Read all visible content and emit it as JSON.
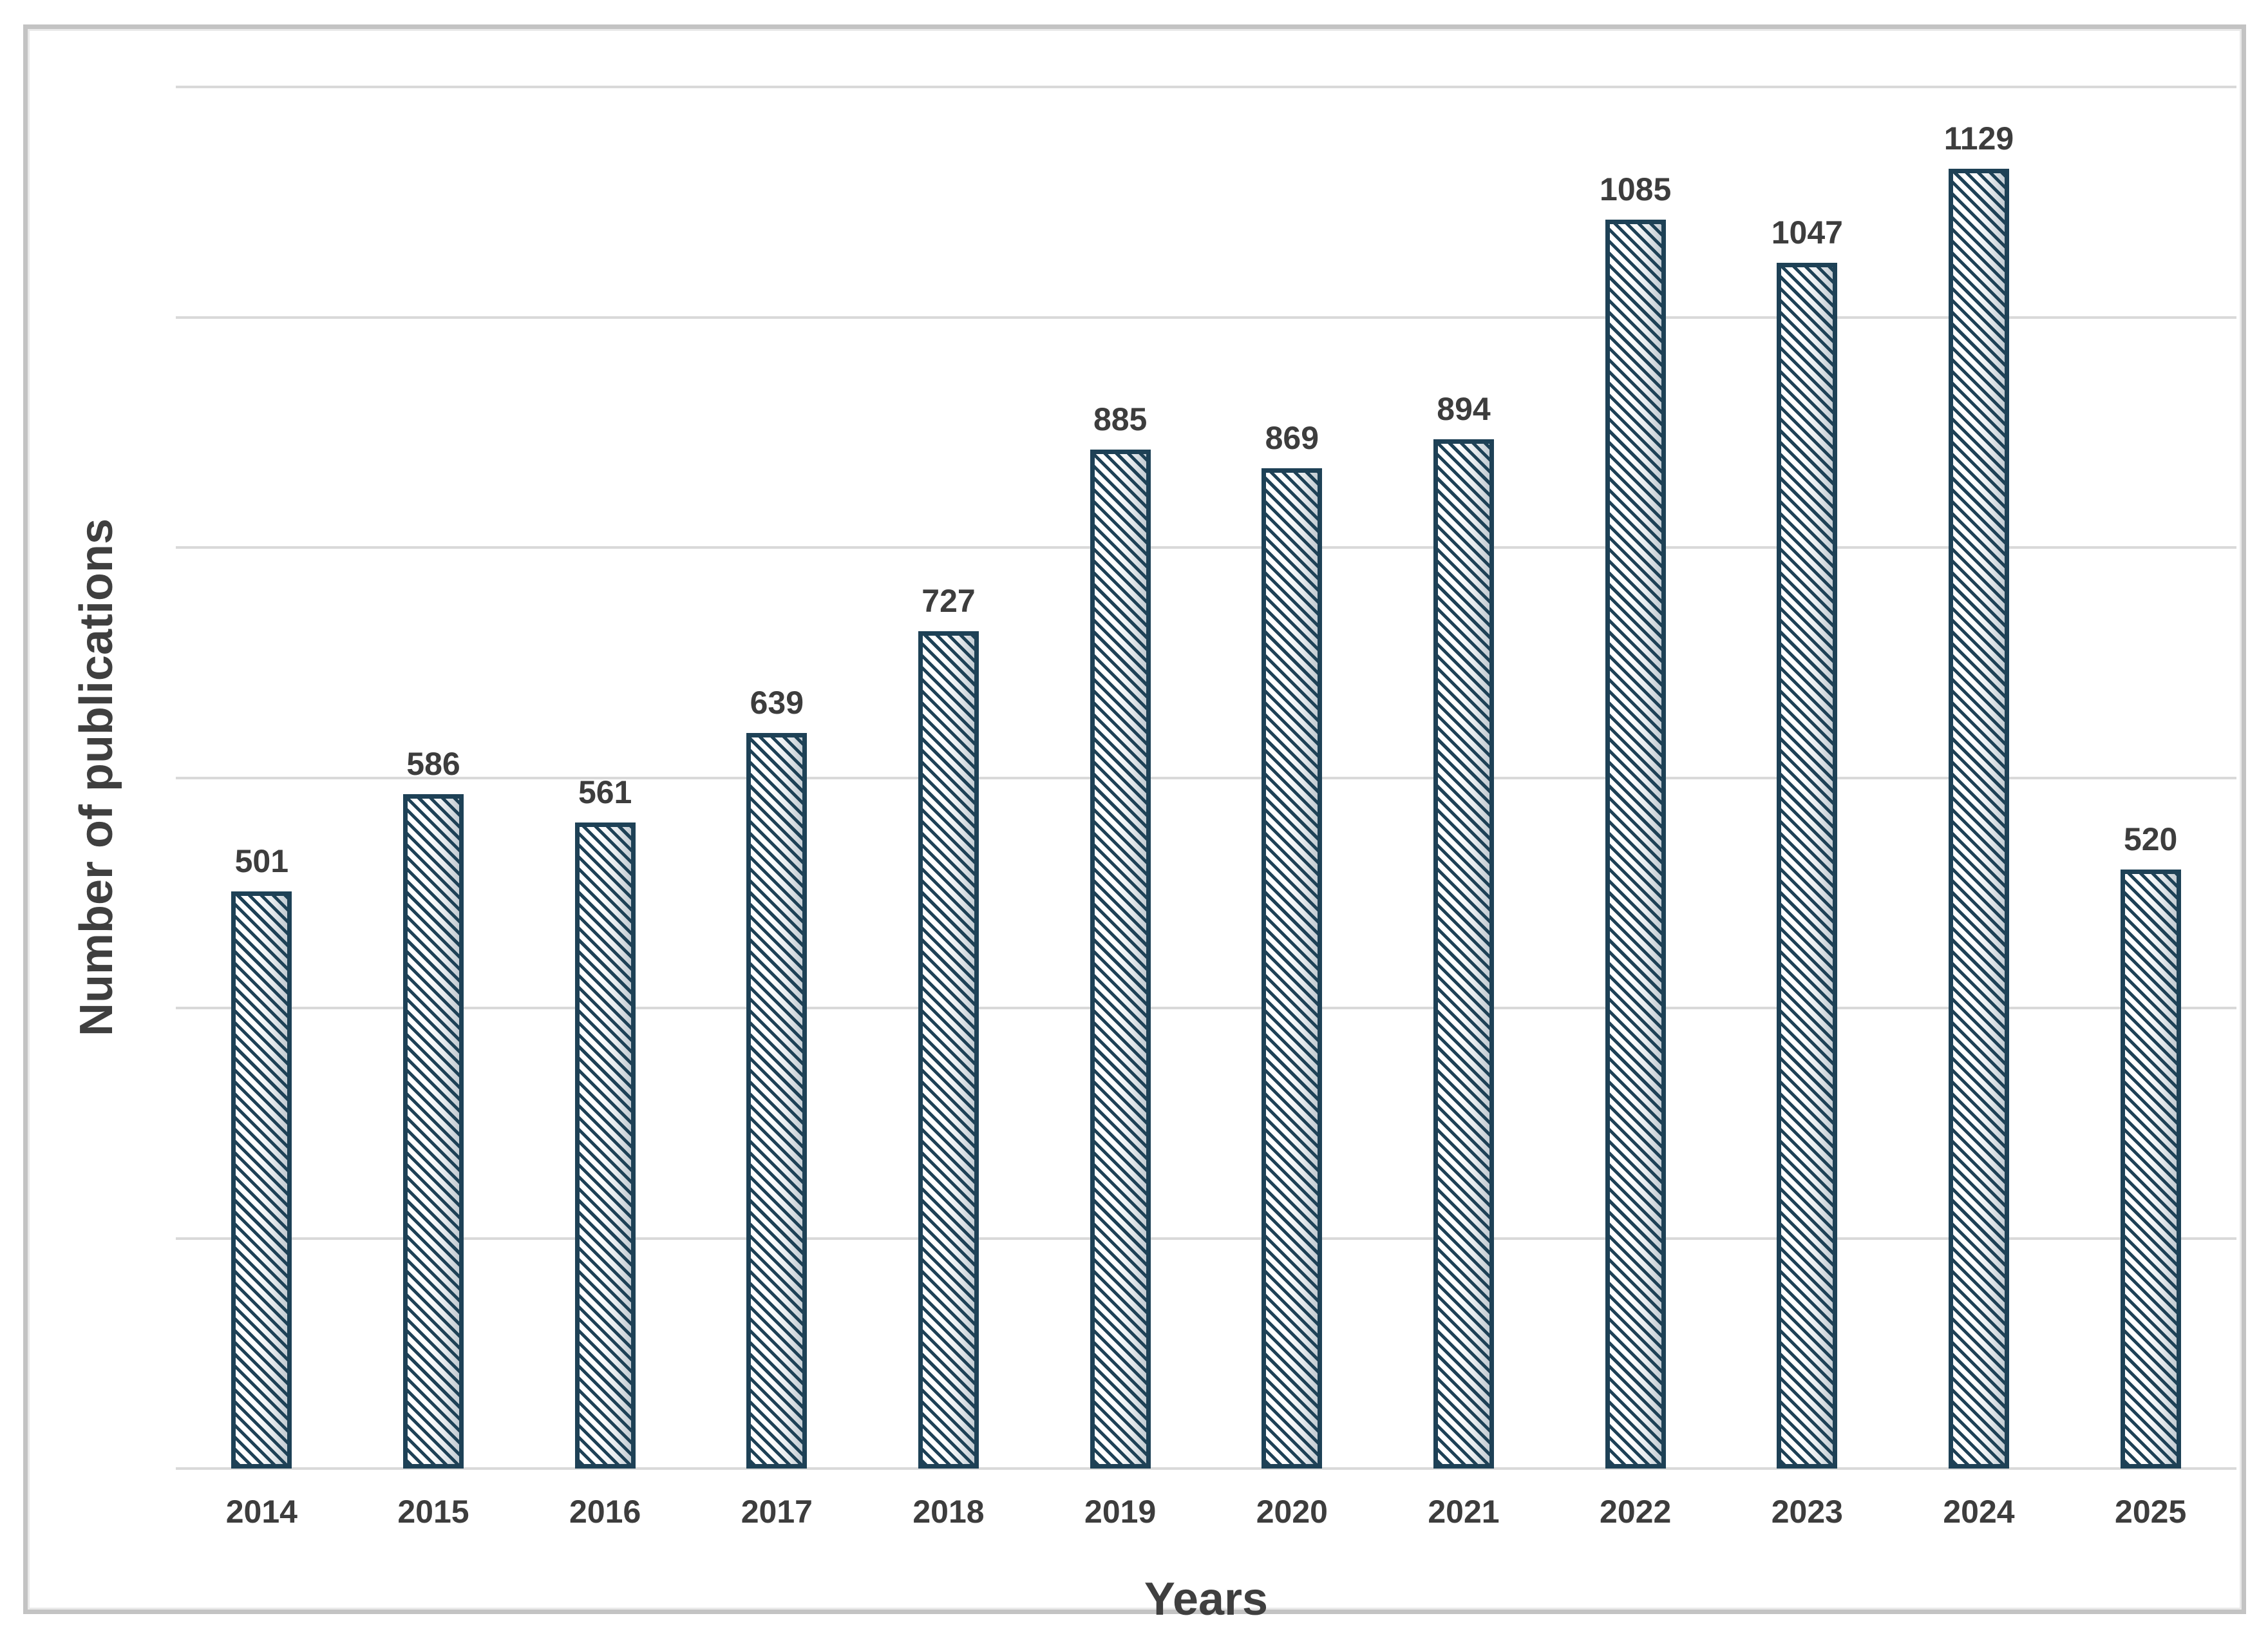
{
  "chart_data": {
    "type": "bar",
    "title": "",
    "categories": [
      "2014",
      "2015",
      "2016",
      "2017",
      "2018",
      "2019",
      "2020",
      "2021",
      "2022",
      "2023",
      "2024",
      "2025"
    ],
    "values": [
      501,
      586,
      561,
      639,
      727,
      885,
      869,
      894,
      1085,
      1047,
      1129,
      520
    ],
    "xlabel": "Years",
    "ylabel": "Number of publications",
    "ylim": [
      0,
      1200
    ],
    "gridline_step": 200,
    "grid": "horizontal-only",
    "y_tick_labels_visible": false,
    "data_labels_visible": true,
    "legend_position": "none",
    "colors": {
      "bar_border": "#1e4156",
      "bar_hatch": "#1e4156",
      "bar_fill_gradient_start": "#ffffff",
      "bar_fill_gradient_end": "#c2cbd2",
      "hatch_style": "diagonal-down",
      "label_text": "#3d3d3d",
      "axis_title_text": "#3f3f3f",
      "gridline": "#d9d9d9",
      "frame_border": "#c3c3c3",
      "background": "#ffffff"
    }
  }
}
